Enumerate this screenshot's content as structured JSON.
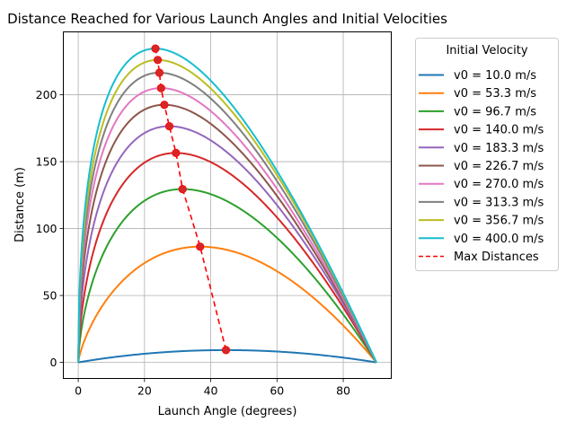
{
  "chart_data": {
    "type": "line",
    "title": "Distance Reached for Various Launch Angles and Initial Velocities",
    "xlabel": "Launch Angle (degrees)",
    "ylabel": "Distance (m)",
    "xlim": [
      -4.5,
      94.5
    ],
    "ylim": [
      -12,
      247
    ],
    "xticks": [
      0,
      20,
      40,
      60,
      80
    ],
    "yticks": [
      0,
      50,
      100,
      150,
      200
    ],
    "grid": true,
    "legend": {
      "title": "Initial Velocity",
      "placement": "outside-right"
    },
    "x_range": [
      0,
      90
    ],
    "series": [
      {
        "name": "v0 = 10.0 m/s",
        "color": "#1f77b4",
        "peak_angle": 44.6,
        "peak_distance": 9.2
      },
      {
        "name": "v0 = 53.3 m/s",
        "color": "#ff7f0e",
        "peak_angle": 36.8,
        "peak_distance": 86.5
      },
      {
        "name": "v0 = 96.7 m/s",
        "color": "#2ca02c",
        "peak_angle": 31.5,
        "peak_distance": 129.5
      },
      {
        "name": "v0 = 140.0 m/s",
        "color": "#d62728",
        "peak_angle": 29.5,
        "peak_distance": 156.5
      },
      {
        "name": "v0 = 183.3 m/s",
        "color": "#9467bd",
        "peak_angle": 27.5,
        "peak_distance": 176.5
      },
      {
        "name": "v0 = 226.7 m/s",
        "color": "#8c564b",
        "peak_angle": 26.0,
        "peak_distance": 192.5
      },
      {
        "name": "v0 = 270.0 m/s",
        "color": "#e377c2",
        "peak_angle": 25.0,
        "peak_distance": 205.0
      },
      {
        "name": "v0 = 313.3 m/s",
        "color": "#7f7f7f",
        "peak_angle": 24.5,
        "peak_distance": 216.5
      },
      {
        "name": "v0 = 356.7 m/s",
        "color": "#bcbd22",
        "peak_angle": 24.0,
        "peak_distance": 226.0
      },
      {
        "name": "v0 = 400.0 m/s",
        "color": "#17becf",
        "peak_angle": 23.3,
        "peak_distance": 234.5
      }
    ],
    "max_distances": {
      "name": "Max Distances",
      "color": "#ff0000",
      "marker_color": "#d62728",
      "angles": [
        44.6,
        36.8,
        31.5,
        29.5,
        27.5,
        26.0,
        25.0,
        24.5,
        24.0,
        23.3
      ],
      "distances": [
        9.2,
        86.5,
        129.5,
        156.5,
        176.5,
        192.5,
        205.0,
        216.5,
        226.0,
        234.5
      ]
    }
  }
}
